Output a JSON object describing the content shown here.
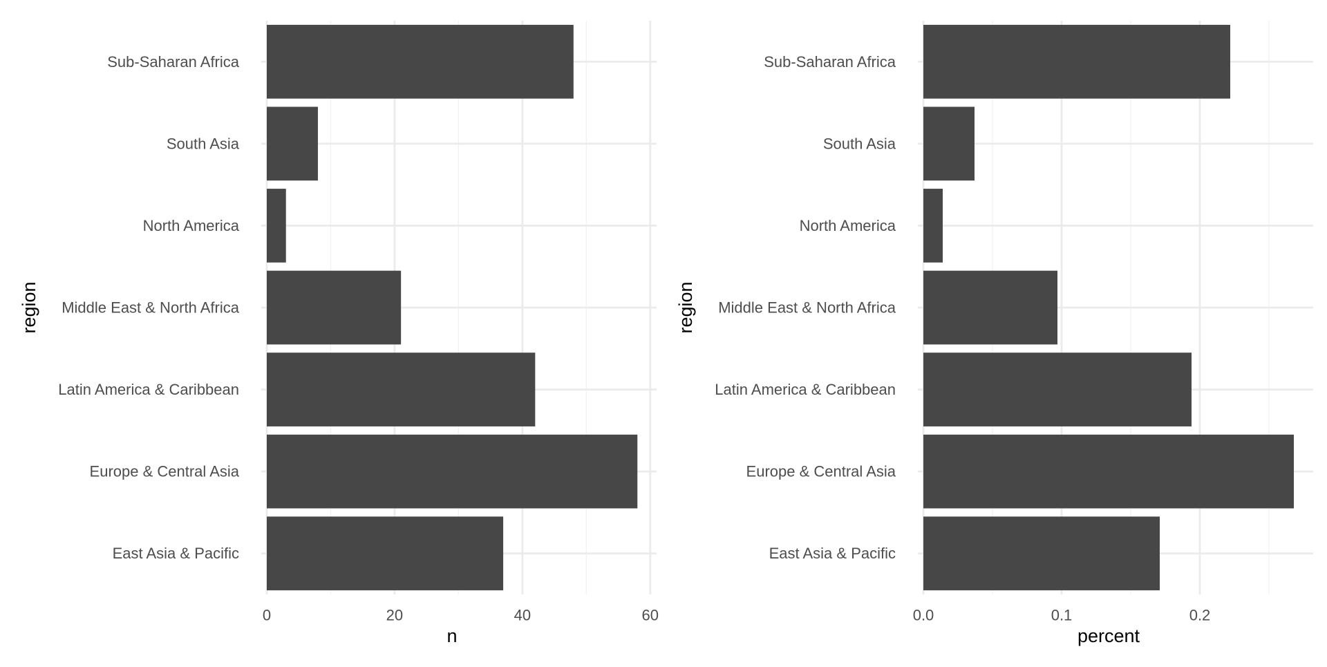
{
  "colors": {
    "bar": "#474747",
    "grid_major": "#ebebeb",
    "grid_minor": "#f2f2f2",
    "axis_text": "#4d4d4d",
    "axis_title": "#000000",
    "background": "#ffffff"
  },
  "chart_data": [
    {
      "type": "bar",
      "orientation": "horizontal",
      "categories": [
        "East Asia & Pacific",
        "Europe & Central Asia",
        "Latin America & Caribbean",
        "Middle East & North Africa",
        "North America",
        "South Asia",
        "Sub-Saharan Africa"
      ],
      "values": [
        37,
        58,
        42,
        21,
        3,
        8,
        48
      ],
      "xlabel": "n",
      "ylabel": "region",
      "xlim": [
        0,
        61
      ],
      "x_ticks": [
        0,
        20,
        40,
        60
      ],
      "x_tick_labels": [
        "0",
        "20",
        "40",
        "60"
      ],
      "grid": true
    },
    {
      "type": "bar",
      "orientation": "horizontal",
      "categories": [
        "East Asia & Pacific",
        "Europe & Central Asia",
        "Latin America & Caribbean",
        "Middle East & North Africa",
        "North America",
        "South Asia",
        "Sub-Saharan Africa"
      ],
      "values": [
        0.171,
        0.268,
        0.194,
        0.097,
        0.014,
        0.037,
        0.222
      ],
      "xlabel": "percent",
      "ylabel": "region",
      "xlim": [
        0,
        0.282
      ],
      "x_ticks": [
        0,
        0.1,
        0.2
      ],
      "x_tick_labels": [
        "0.0",
        "0.1",
        "0.2"
      ],
      "grid": true
    }
  ]
}
